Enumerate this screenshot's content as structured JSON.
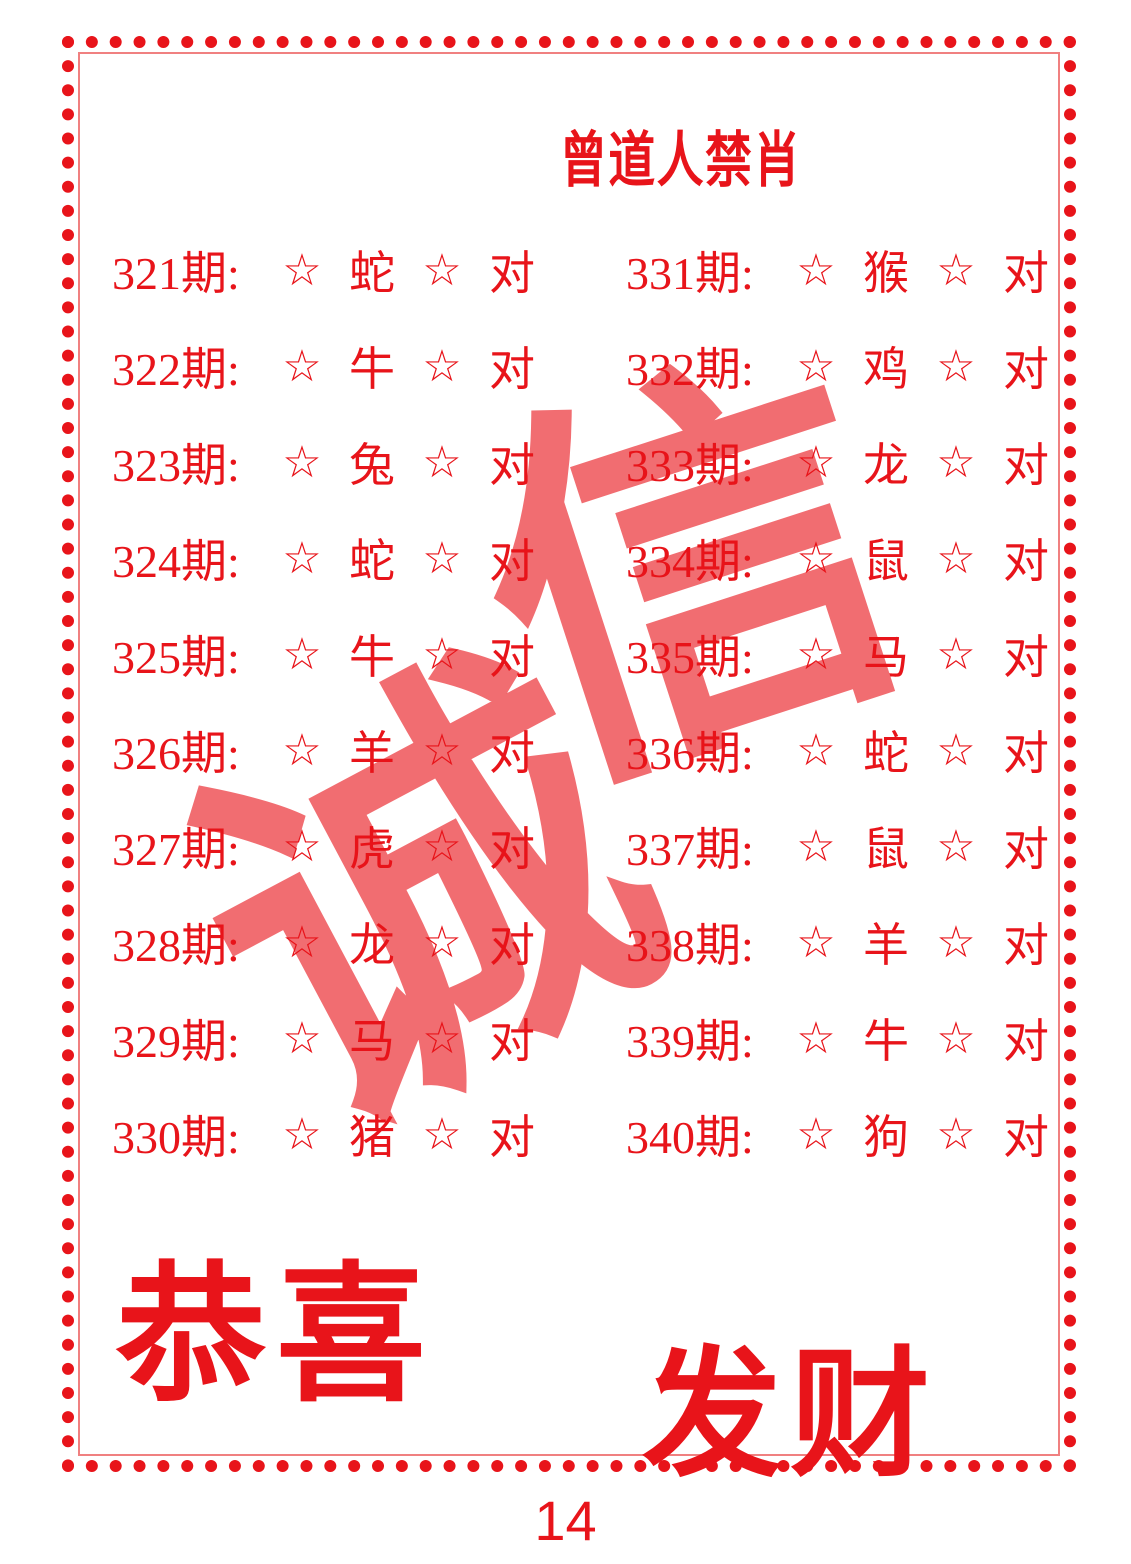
{
  "title": "曾道人禁肖",
  "rows_left": [
    {
      "period": "321期:",
      "star1": "☆",
      "zodiac": "蛇",
      "star2": "☆",
      "result": "对"
    },
    {
      "period": "322期:",
      "star1": "☆",
      "zodiac": "牛",
      "star2": "☆",
      "result": "对"
    },
    {
      "period": "323期:",
      "star1": "☆",
      "zodiac": "兔",
      "star2": "☆",
      "result": "对"
    },
    {
      "period": "324期:",
      "star1": "☆",
      "zodiac": "蛇",
      "star2": "☆",
      "result": "对"
    },
    {
      "period": "325期:",
      "star1": "☆",
      "zodiac": "牛",
      "star2": "☆",
      "result": "对"
    },
    {
      "period": "326期:",
      "star1": "☆",
      "zodiac": "羊",
      "star2": "☆",
      "result": "对"
    },
    {
      "period": "327期:",
      "star1": "☆",
      "zodiac": "虎",
      "star2": "☆",
      "result": "对"
    },
    {
      "period": "328期:",
      "star1": "☆",
      "zodiac": "龙",
      "star2": "☆",
      "result": "对"
    },
    {
      "period": "329期:",
      "star1": "☆",
      "zodiac": "马",
      "star2": "☆",
      "result": "对"
    },
    {
      "period": "330期:",
      "star1": "☆",
      "zodiac": "猪",
      "star2": "☆",
      "result": "对"
    }
  ],
  "rows_right": [
    {
      "period": "331期:",
      "star1": "☆",
      "zodiac": "猴",
      "star2": "☆",
      "result": "对"
    },
    {
      "period": "332期:",
      "star1": "☆",
      "zodiac": "鸡",
      "star2": "☆",
      "result": "对"
    },
    {
      "period": "333期:",
      "star1": "☆",
      "zodiac": "龙",
      "star2": "☆",
      "result": "对"
    },
    {
      "period": "334期:",
      "star1": "☆",
      "zodiac": "鼠",
      "star2": "☆",
      "result": "对"
    },
    {
      "period": "335期:",
      "star1": "☆",
      "zodiac": "马",
      "star2": "☆",
      "result": "对"
    },
    {
      "period": "336期:",
      "star1": "☆",
      "zodiac": "蛇",
      "star2": "☆",
      "result": "对"
    },
    {
      "period": "337期:",
      "star1": "☆",
      "zodiac": "鼠",
      "star2": "☆",
      "result": "对"
    },
    {
      "period": "338期:",
      "star1": "☆",
      "zodiac": "羊",
      "star2": "☆",
      "result": "对"
    },
    {
      "period": "339期:",
      "star1": "☆",
      "zodiac": "牛",
      "star2": "☆",
      "result": "对"
    },
    {
      "period": "340期:",
      "star1": "☆",
      "zodiac": "狗",
      "star2": "☆",
      "result": "对"
    }
  ],
  "watermark": {
    "char1": "诚",
    "char2": "信"
  },
  "greeting": {
    "line1": "恭喜",
    "line2": "发财"
  },
  "page_number": "14",
  "colors": {
    "primary": "#e8141a",
    "watermark": "rgba(232,20,26,0.62)"
  }
}
